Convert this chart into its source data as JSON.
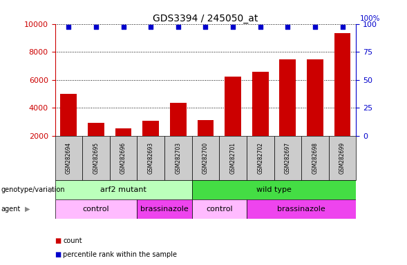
{
  "title": "GDS3394 / 245050_at",
  "samples": [
    "GSM282694",
    "GSM282695",
    "GSM282696",
    "GSM282693",
    "GSM282703",
    "GSM282700",
    "GSM282701",
    "GSM282702",
    "GSM282697",
    "GSM282698",
    "GSM282699"
  ],
  "counts": [
    5000,
    2900,
    2500,
    3050,
    4350,
    3100,
    6200,
    6550,
    7450,
    7450,
    9350
  ],
  "percentile_ranks": [
    97,
    97,
    97,
    97,
    97,
    97,
    97,
    97,
    97,
    97,
    97
  ],
  "ylim_left": [
    2000,
    10000
  ],
  "ylim_right": [
    0,
    100
  ],
  "yticks_left": [
    2000,
    4000,
    6000,
    8000,
    10000
  ],
  "yticks_right": [
    0,
    25,
    50,
    75,
    100
  ],
  "bar_color": "#cc0000",
  "dot_color": "#0000cc",
  "background_color": "#ffffff",
  "plot_bg_color": "#ffffff",
  "grid_color": "#000000",
  "axis_left_color": "#cc0000",
  "axis_right_color": "#0000cc",
  "sample_box_color": "#cccccc",
  "genotype_groups": [
    {
      "label": "arf2 mutant",
      "start": 0,
      "end": 5,
      "color": "#bbffbb"
    },
    {
      "label": "wild type",
      "start": 5,
      "end": 11,
      "color": "#44dd44"
    }
  ],
  "agent_groups": [
    {
      "label": "control",
      "start": 0,
      "end": 3,
      "color": "#ffbbff"
    },
    {
      "label": "brassinazole",
      "start": 3,
      "end": 5,
      "color": "#ee44ee"
    },
    {
      "label": "control",
      "start": 5,
      "end": 7,
      "color": "#ffbbff"
    },
    {
      "label": "brassinazole",
      "start": 7,
      "end": 11,
      "color": "#ee44ee"
    }
  ],
  "legend_count_color": "#cc0000",
  "legend_percentile_color": "#0000cc",
  "bar_width": 0.6,
  "dot_size": 15,
  "right_axis_label": "100%"
}
